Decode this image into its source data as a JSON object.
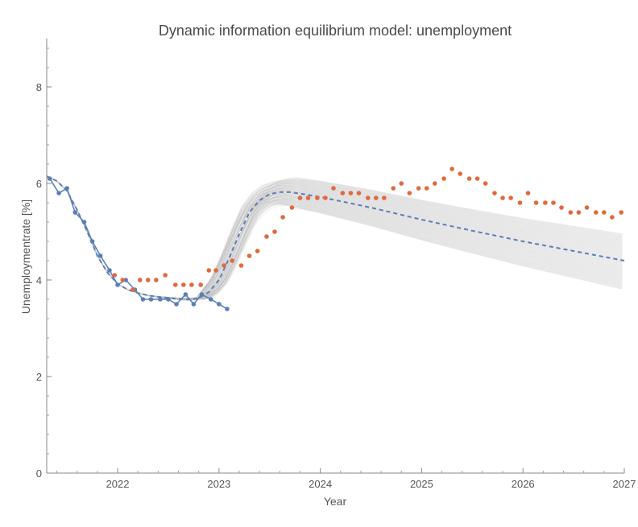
{
  "chart_data": {
    "type": "line",
    "title": "Dynamic information equilibrium model: unemployment",
    "xlabel": "Year",
    "ylabel": "Unemploymentrate [%]",
    "xlim": [
      2021.3,
      2027.0
    ],
    "ylim": [
      0,
      9
    ],
    "x_ticks": [
      2022,
      2023,
      2024,
      2025,
      2026,
      2027
    ],
    "x_tick_labels": [
      "2022",
      "2023",
      "2024",
      "2025",
      "2026",
      "2027"
    ],
    "y_ticks": [
      0,
      2,
      4,
      6,
      8
    ],
    "y_tick_labels": [
      "0",
      "2",
      "4",
      "6",
      "8"
    ],
    "grid": false,
    "series": [
      {
        "role": "data",
        "color": "#5b7fb5",
        "style": "line-with-markers",
        "points": [
          [
            2021.33,
            6.1
          ],
          [
            2021.42,
            5.8
          ],
          [
            2021.5,
            5.9
          ],
          [
            2021.58,
            5.4
          ],
          [
            2021.67,
            5.2
          ],
          [
            2021.75,
            4.8
          ],
          [
            2021.83,
            4.5
          ],
          [
            2021.92,
            4.2
          ],
          [
            2022.0,
            3.9
          ],
          [
            2022.08,
            4.0
          ],
          [
            2022.17,
            3.8
          ],
          [
            2022.25,
            3.6
          ],
          [
            2022.33,
            3.6
          ],
          [
            2022.42,
            3.6
          ],
          [
            2022.5,
            3.6
          ],
          [
            2022.58,
            3.5
          ],
          [
            2022.67,
            3.7
          ],
          [
            2022.75,
            3.5
          ],
          [
            2022.83,
            3.7
          ],
          [
            2022.92,
            3.6
          ],
          [
            2023.0,
            3.5
          ],
          [
            2023.08,
            3.4
          ]
        ]
      },
      {
        "role": "forecast-points",
        "color": "#e06a3f",
        "style": "markers",
        "points": [
          [
            2021.97,
            4.1
          ],
          [
            2022.05,
            4.0
          ],
          [
            2022.15,
            3.8
          ],
          [
            2022.22,
            4.0
          ],
          [
            2022.3,
            4.0
          ],
          [
            2022.38,
            4.0
          ],
          [
            2022.47,
            4.1
          ],
          [
            2022.57,
            3.9
          ],
          [
            2022.65,
            3.9
          ],
          [
            2022.73,
            3.9
          ],
          [
            2022.82,
            3.9
          ],
          [
            2022.9,
            4.2
          ],
          [
            2022.97,
            4.2
          ],
          [
            2023.05,
            4.3
          ],
          [
            2023.13,
            4.4
          ],
          [
            2023.22,
            4.3
          ],
          [
            2023.3,
            4.5
          ],
          [
            2023.38,
            4.6
          ],
          [
            2023.47,
            4.9
          ],
          [
            2023.55,
            5.0
          ],
          [
            2023.63,
            5.3
          ],
          [
            2023.72,
            5.5
          ],
          [
            2023.8,
            5.7
          ],
          [
            2023.88,
            5.7
          ],
          [
            2023.97,
            5.7
          ],
          [
            2024.05,
            5.7
          ],
          [
            2024.13,
            5.9
          ],
          [
            2024.22,
            5.8
          ],
          [
            2024.3,
            5.8
          ],
          [
            2024.38,
            5.8
          ],
          [
            2024.47,
            5.7
          ],
          [
            2024.55,
            5.7
          ],
          [
            2024.63,
            5.7
          ],
          [
            2024.72,
            5.9
          ],
          [
            2024.8,
            6.0
          ],
          [
            2024.88,
            5.8
          ],
          [
            2024.97,
            5.9
          ],
          [
            2025.05,
            5.9
          ],
          [
            2025.13,
            6.0
          ],
          [
            2025.22,
            6.1
          ],
          [
            2025.3,
            6.3
          ],
          [
            2025.38,
            6.2
          ],
          [
            2025.47,
            6.1
          ],
          [
            2025.55,
            6.1
          ],
          [
            2025.63,
            6.0
          ],
          [
            2025.72,
            5.8
          ],
          [
            2025.8,
            5.7
          ],
          [
            2025.88,
            5.7
          ],
          [
            2025.97,
            5.6
          ],
          [
            2026.05,
            5.8
          ],
          [
            2026.13,
            5.6
          ],
          [
            2026.22,
            5.6
          ],
          [
            2026.3,
            5.6
          ],
          [
            2026.38,
            5.5
          ],
          [
            2026.47,
            5.4
          ],
          [
            2026.55,
            5.4
          ],
          [
            2026.63,
            5.5
          ],
          [
            2026.72,
            5.4
          ],
          [
            2026.8,
            5.4
          ],
          [
            2026.88,
            5.3
          ],
          [
            2026.97,
            5.4
          ]
        ]
      },
      {
        "role": "model-central",
        "color": "#5b7fb5",
        "style": "dashed",
        "points": [
          [
            2021.3,
            6.15
          ],
          [
            2021.4,
            6.05
          ],
          [
            2021.5,
            5.85
          ],
          [
            2021.6,
            5.45
          ],
          [
            2021.7,
            5.0
          ],
          [
            2021.8,
            4.5
          ],
          [
            2021.9,
            4.15
          ],
          [
            2022.0,
            3.92
          ],
          [
            2022.1,
            3.8
          ],
          [
            2022.2,
            3.73
          ],
          [
            2022.3,
            3.68
          ],
          [
            2022.4,
            3.65
          ],
          [
            2022.5,
            3.63
          ],
          [
            2022.6,
            3.61
          ],
          [
            2022.7,
            3.6
          ],
          [
            2022.8,
            3.62
          ],
          [
            2022.9,
            3.75
          ],
          [
            2023.0,
            4.0
          ],
          [
            2023.1,
            4.45
          ],
          [
            2023.2,
            4.95
          ],
          [
            2023.3,
            5.4
          ],
          [
            2023.4,
            5.65
          ],
          [
            2023.5,
            5.78
          ],
          [
            2023.6,
            5.82
          ],
          [
            2023.7,
            5.82
          ],
          [
            2023.8,
            5.79
          ],
          [
            2024.0,
            5.72
          ],
          [
            2024.5,
            5.5
          ],
          [
            2025.0,
            5.25
          ],
          [
            2025.5,
            5.02
          ],
          [
            2026.0,
            4.8
          ],
          [
            2026.5,
            4.6
          ],
          [
            2027.0,
            4.4
          ]
        ]
      }
    ],
    "ensemble": {
      "color": "#bdbdbd",
      "count": 80,
      "spread_end_low": 3.8,
      "spread_end_high": 4.95,
      "spread_peak": 0.45
    }
  }
}
